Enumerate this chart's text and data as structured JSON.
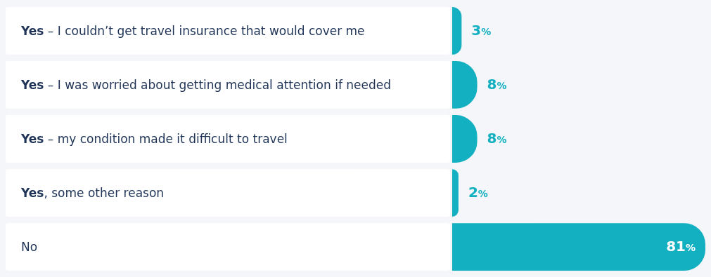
{
  "chart_data": {
    "type": "bar",
    "orientation": "horizontal",
    "categories": [
      "Yes – I couldn’t get travel insurance that would cover me",
      "Yes – I was worried about getting medical attention if needed",
      "Yes – my condition made it difficult to travel",
      "Yes, some other reason",
      "No"
    ],
    "values": [
      3,
      8,
      8,
      2,
      81
    ],
    "value_labels": [
      "3%",
      "8%",
      "8%",
      "2%",
      "81%"
    ],
    "color": "#12b0c0"
  }
}
